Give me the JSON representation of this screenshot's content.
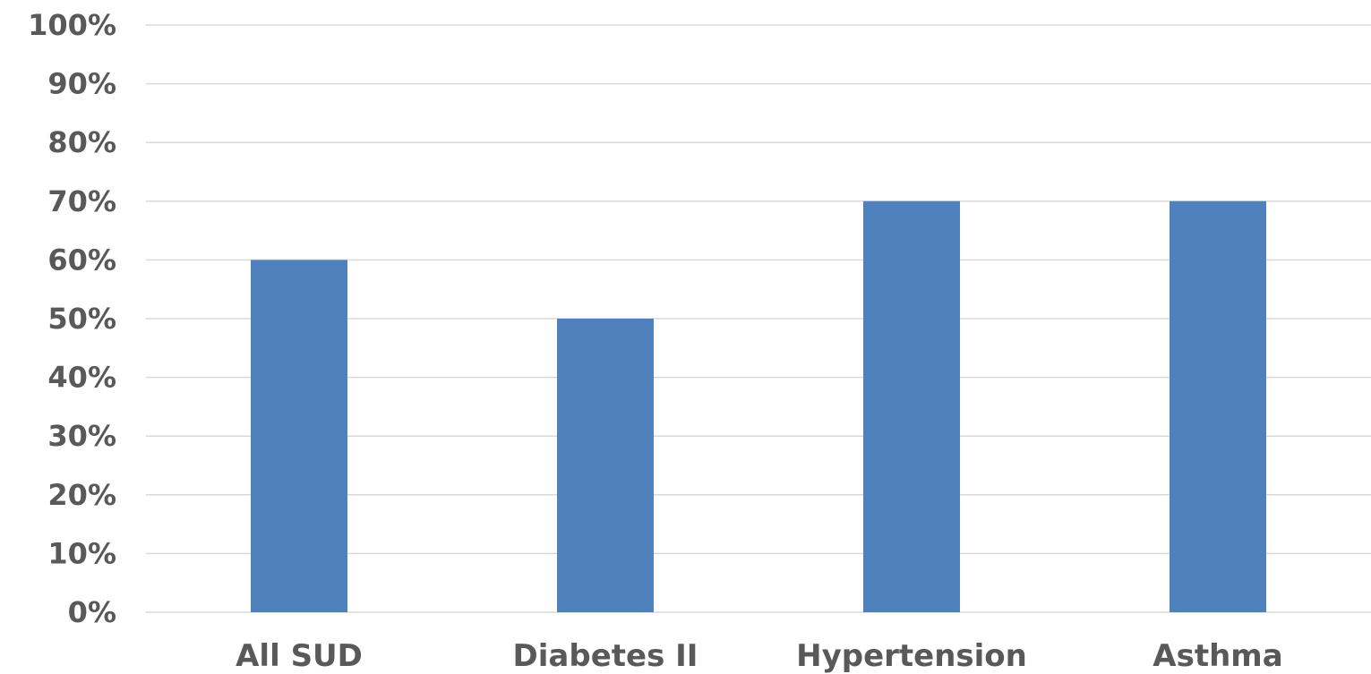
{
  "chart_data": {
    "type": "bar",
    "categories": [
      "All SUD",
      "Diabetes II",
      "Hypertension",
      "Asthma"
    ],
    "series": [
      {
        "values": [
          60,
          50,
          70,
          70
        ]
      }
    ],
    "yticks": [
      "0%",
      "10%",
      "20%",
      "30%",
      "40%",
      "50%",
      "60%",
      "70%",
      "80%",
      "90%",
      "100%"
    ],
    "ylim": [
      0,
      100
    ],
    "title": "",
    "xlabel": "",
    "ylabel": "",
    "grid": true,
    "bar_color": "#4f81bd",
    "gridline_color": "#d9d9d9",
    "label_color": "#595959"
  }
}
